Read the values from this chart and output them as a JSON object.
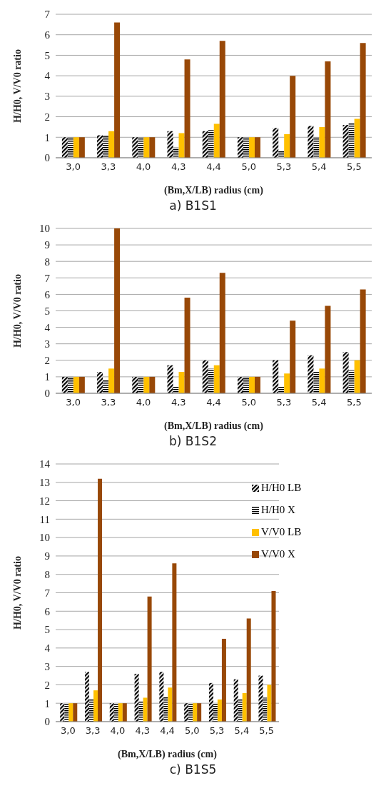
{
  "chart_data": [
    {
      "type": "bar",
      "title": "a) B1S1",
      "xlabel": "(Bm,X/LB) radius (cm)",
      "ylabel": "H/H0, V/V0 ratio",
      "categories": [
        "3,0",
        "3,3",
        "4,0",
        "4,3",
        "4,4",
        "5,0",
        "5,3",
        "5,4",
        "5,5"
      ],
      "ylim": [
        0,
        7
      ],
      "yticks": [
        0,
        1,
        2,
        3,
        4,
        5,
        6,
        7
      ],
      "grid": "y",
      "series": [
        {
          "color": "#000000",
          "values": [
            1,
            1.1,
            1,
            1.3,
            1.3,
            1,
            1.45,
            1.55,
            1.6
          ]
        },
        {
          "color": "#000000",
          "values": [
            1,
            1.1,
            1,
            0.5,
            1.35,
            1,
            0.35,
            1.0,
            1.7
          ]
        },
        {
          "color": "#ffc000",
          "values": [
            1,
            1.3,
            1,
            1.2,
            1.65,
            1,
            1.15,
            1.5,
            1.9
          ]
        },
        {
          "color": "#984807",
          "values": [
            1,
            6.6,
            1,
            4.8,
            5.7,
            1,
            4.0,
            4.7,
            5.6
          ]
        }
      ]
    },
    {
      "type": "bar",
      "title": "b) B1S2",
      "xlabel": "(Bm,X/LB) radius (cm)",
      "ylabel": "H/H0, V/V0 ratio",
      "categories": [
        "3,0",
        "3,3",
        "4,0",
        "4,3",
        "4,4",
        "5,0",
        "5,3",
        "5,4",
        "5,5"
      ],
      "ylim": [
        0,
        10
      ],
      "yticks": [
        0,
        1,
        2,
        3,
        4,
        5,
        6,
        7,
        8,
        9,
        10
      ],
      "grid": "y",
      "series": [
        {
          "color": "#000000",
          "values": [
            1,
            1.3,
            1,
            1.7,
            2,
            1,
            2,
            2.3,
            2.5
          ]
        },
        {
          "color": "#000000",
          "values": [
            1,
            0.8,
            1,
            0.4,
            1.5,
            1,
            0.4,
            1.3,
            1.4
          ]
        },
        {
          "color": "#ffc000",
          "values": [
            1,
            1.5,
            1,
            1.3,
            1.7,
            1,
            1.2,
            1.5,
            2
          ]
        },
        {
          "color": "#984807",
          "values": [
            1,
            10,
            1,
            5.8,
            7.3,
            1,
            4.4,
            5.3,
            6.3
          ]
        }
      ]
    },
    {
      "type": "bar",
      "title": "c) B1S5",
      "xlabel": "(Bm,X/LB) radius (cm)",
      "ylabel": "H/H0, V/V0 ratio",
      "categories": [
        "3,0",
        "3,3",
        "4,0",
        "4,3",
        "4,4",
        "5,0",
        "5,3",
        "5,4",
        "5,5"
      ],
      "ylim": [
        0,
        14
      ],
      "yticks": [
        0,
        1,
        2,
        3,
        4,
        5,
        6,
        7,
        8,
        9,
        10,
        11,
        12,
        13,
        14
      ],
      "grid": "y",
      "legend": "top right",
      "series": [
        {
          "name": "H/H0 LB",
          "color": "#000000",
          "values": [
            1,
            2.7,
            1,
            2.6,
            2.7,
            1,
            2.1,
            2.3,
            2.5
          ]
        },
        {
          "name": "H/H0 X",
          "color": "#000000",
          "values": [
            1,
            1.2,
            1,
            1.1,
            1.35,
            1,
            1.0,
            1.2,
            1.3
          ]
        },
        {
          "name": "V/V0 LB",
          "color": "#ffc000",
          "values": [
            1,
            1.7,
            1,
            1.3,
            1.85,
            1,
            1.2,
            1.55,
            2.0
          ]
        },
        {
          "name": "V/V0 X",
          "color": "#984807",
          "values": [
            1,
            13.2,
            1,
            6.8,
            8.6,
            1,
            4.5,
            5.6,
            7.1
          ]
        }
      ]
    }
  ]
}
